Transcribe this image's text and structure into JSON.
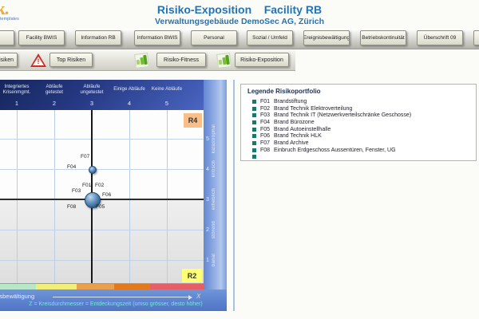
{
  "header": {
    "logo_text": "sk.",
    "logo_subtext": "templates",
    "title": "Risiko-Exposition    Facility RB",
    "subtitle": "Verwaltungsgebäude DemoSec AG, Zürich",
    "tabs": [
      {
        "label": ""
      },
      {
        "label": "Facility BWIS"
      },
      {
        "label": "Information RB"
      },
      {
        "label": "Information BWIS"
      },
      {
        "label": "Personal"
      },
      {
        "label": "Sozial / Umfeld"
      },
      {
        "label": "Ereignisbewältigung"
      },
      {
        "label": "Betriebskontinuität"
      },
      {
        "label": "Überschrift 09"
      },
      {
        "label": ""
      }
    ],
    "toolbar": [
      {
        "type": "button",
        "label": "isiken"
      },
      {
        "type": "warning-icon",
        "label": ""
      },
      {
        "type": "button",
        "label": "Top Risiken"
      },
      {
        "type": "chart-icon",
        "label": ""
      },
      {
        "type": "button",
        "label": "Risiko-Fitness"
      },
      {
        "type": "chart-icon",
        "label": ""
      },
      {
        "type": "button",
        "label": "Risiko-Exposition"
      }
    ]
  },
  "legend": {
    "title": "Legende Risikoportfolio",
    "items": [
      {
        "code": "F01",
        "label": "Brandstiftung"
      },
      {
        "code": "F02",
        "label": "Brand Technik Elektroverteilung"
      },
      {
        "code": "F03",
        "label": "Brand Technik IT (Netzwerkverteilschränke Geschosse)"
      },
      {
        "code": "F04",
        "label": "Brand Bürozone"
      },
      {
        "code": "F05",
        "label": "Brand Autoeinstellhalle"
      },
      {
        "code": "F06",
        "label": "Brand Technik HLK"
      },
      {
        "code": "F07",
        "label": "Brand Archive"
      },
      {
        "code": "F08",
        "label": "Einbruch Erdgeschoss Aussentüren, Fenster, UG"
      },
      {
        "code": "",
        "label": ""
      }
    ]
  },
  "chart_data": {
    "type": "bubble",
    "x_axis": {
      "label": "Ereignisbewältigung",
      "ticks": [
        1,
        2,
        3,
        4,
        5
      ],
      "tick_labels": [
        "Integriertes\nKrisenmgmt.",
        "Abläufe\ngetestet",
        "Abläufe\nungetestet",
        "Einige Abläufe",
        "Keine Abläufe"
      ]
    },
    "y_axis": {
      "ticks": [
        1,
        2,
        3,
        4,
        5
      ],
      "tick_labels": [
        "banal",
        "störend",
        "erheblich",
        "kritisch",
        "katastrophal"
      ]
    },
    "points": [
      {
        "id": "F01",
        "x": 3,
        "y": 3
      },
      {
        "id": "F02",
        "x": 3,
        "y": 3
      },
      {
        "id": "F03",
        "x": 3,
        "y": 3
      },
      {
        "id": "F04",
        "x": 3,
        "y": 4
      },
      {
        "id": "F05",
        "x": 3,
        "y": 3
      },
      {
        "id": "F06",
        "x": 3,
        "y": 3
      },
      {
        "id": "F07",
        "x": 3,
        "y": 4
      },
      {
        "id": "F08",
        "x": 3,
        "y": 3
      }
    ],
    "bubbles": [
      {
        "x": 3,
        "y": 4,
        "diameter": 8
      },
      {
        "x": 3,
        "y": 3,
        "diameter": 18
      }
    ],
    "quadrant_labels": {
      "top_right": "R4",
      "bottom_right": "R2"
    },
    "x_arrow_label": "X",
    "z_note": "Z = Kreisdurchmesser = Entdeckungszeit (umso grösser, desto höher)",
    "colorbar": [
      "#b8e6c8",
      "#f0ee78",
      "#e9a04e",
      "#e2791c",
      "#e65f66"
    ]
  }
}
